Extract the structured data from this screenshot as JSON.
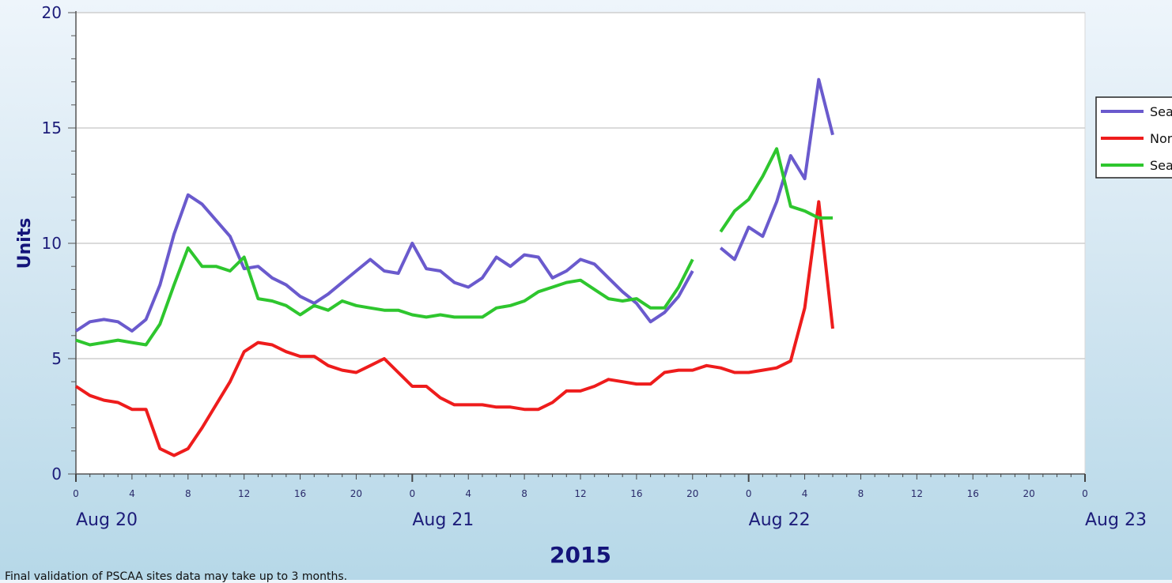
{
  "chart_data": {
    "type": "line",
    "xlabel": "2015",
    "ylabel": "Units",
    "ylim": [
      0,
      20
    ],
    "yticks": [
      0,
      5,
      10,
      15,
      20
    ],
    "x_start": "Aug 20 0:00",
    "x_end": "Aug 23 0:00",
    "x_tick_labels": [
      "0",
      "4",
      "8",
      "12",
      "16",
      "20",
      "0",
      "4",
      "8",
      "12",
      "16",
      "20",
      "0",
      "4",
      "8",
      "12",
      "16",
      "20",
      "0"
    ],
    "day_labels": [
      "Aug 20",
      "Aug 21",
      "Aug 22",
      "Aug 23"
    ],
    "grid": "horizontal",
    "legend_position": "right",
    "series": [
      {
        "name": "Sea",
        "color": "#6a5acd",
        "values": [
          6.2,
          6.6,
          6.7,
          6.6,
          6.2,
          6.7,
          8.2,
          10.4,
          12.1,
          11.7,
          11.0,
          10.3,
          8.9,
          9.0,
          8.5,
          8.2,
          7.7,
          7.4,
          7.8,
          8.3,
          8.8,
          9.3,
          8.8,
          8.7,
          10.0,
          8.9,
          8.8,
          8.3,
          8.1,
          8.5,
          9.4,
          9.0,
          9.5,
          9.4,
          8.5,
          8.8,
          9.3,
          9.1,
          8.5,
          7.9,
          7.4,
          6.6,
          7.0,
          7.7,
          8.8,
          null,
          9.8,
          9.3,
          10.7,
          10.3,
          11.8,
          13.8,
          12.8,
          17.1,
          14.7
        ]
      },
      {
        "name": "Nor",
        "color": "#ee1c1c",
        "values": [
          3.8,
          3.4,
          3.2,
          3.1,
          2.8,
          2.8,
          1.1,
          0.8,
          1.1,
          2.0,
          3.0,
          4.0,
          5.3,
          5.7,
          5.6,
          5.3,
          5.1,
          5.1,
          4.7,
          4.5,
          4.4,
          4.7,
          5.0,
          4.4,
          3.8,
          3.8,
          3.3,
          3.0,
          3.0,
          3.0,
          2.9,
          2.9,
          2.8,
          2.8,
          3.1,
          3.6,
          3.6,
          3.8,
          4.1,
          4.0,
          3.9,
          3.9,
          4.4,
          4.5,
          4.5,
          4.7,
          4.6,
          4.4,
          4.4,
          4.5,
          4.6,
          4.9,
          7.2,
          11.8,
          6.3
        ]
      },
      {
        "name": "Sea",
        "color": "#2ec62e",
        "values": [
          5.8,
          5.6,
          5.7,
          5.8,
          5.7,
          5.6,
          6.5,
          8.2,
          9.8,
          9.0,
          9.0,
          8.8,
          9.4,
          7.6,
          7.5,
          7.3,
          6.9,
          7.3,
          7.1,
          7.5,
          7.3,
          7.2,
          7.1,
          7.1,
          6.9,
          6.8,
          6.9,
          6.8,
          6.8,
          6.8,
          7.2,
          7.3,
          7.5,
          7.9,
          8.1,
          8.3,
          8.4,
          8.0,
          7.6,
          7.5,
          7.6,
          7.2,
          7.2,
          8.1,
          9.3,
          null,
          10.5,
          11.4,
          11.9,
          12.9,
          14.1,
          11.6,
          11.4,
          11.1,
          11.1
        ]
      }
    ]
  },
  "footnote": "Final validation of PSCAA sites data may take up to 3 months."
}
